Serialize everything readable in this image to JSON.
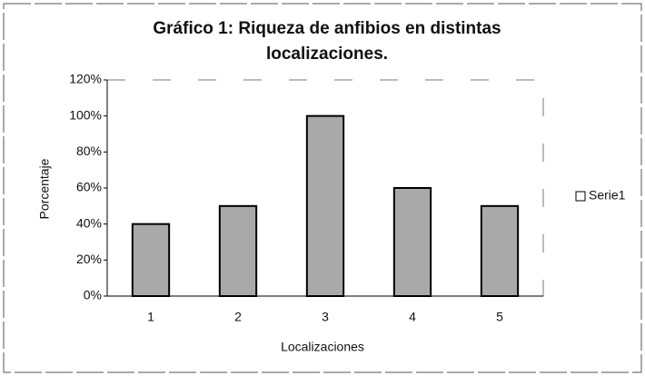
{
  "chart_data": {
    "type": "bar",
    "title": "Gráfico 1: Riqueza de anfibios en distintas localizaciones.",
    "x_label": "Localizaciones",
    "y_label": "Porcentaje",
    "categories": [
      "1",
      "2",
      "3",
      "4",
      "5"
    ],
    "series": [
      {
        "name": "Serie1",
        "color": "#a9a9a9",
        "values": [
          40,
          50,
          100,
          60,
          50
        ]
      }
    ],
    "ylim": [
      0,
      120
    ],
    "yticks": [
      {
        "value": 0,
        "label": "0%"
      },
      {
        "value": 20,
        "label": "20%"
      },
      {
        "value": 40,
        "label": "40%"
      },
      {
        "value": 60,
        "label": "60%"
      },
      {
        "value": 80,
        "label": "80%"
      },
      {
        "value": 100,
        "label": "100%"
      },
      {
        "value": 120,
        "label": "120%"
      }
    ],
    "legend": "right"
  }
}
